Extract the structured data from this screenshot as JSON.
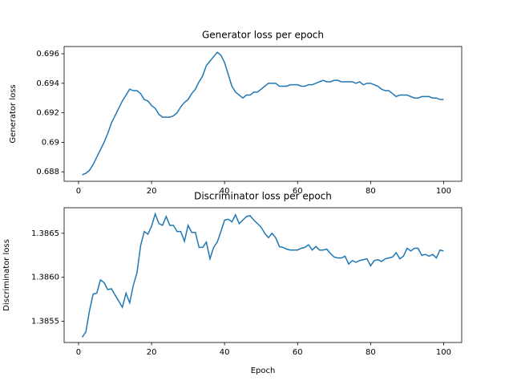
{
  "chart_data": [
    {
      "type": "line",
      "title": "Generator loss per epoch",
      "ylabel": "Generator loss",
      "color": "#1f77b4",
      "x": [
        1,
        2,
        3,
        4,
        5,
        6,
        7,
        8,
        9,
        10,
        11,
        12,
        13,
        14,
        15,
        16,
        17,
        18,
        19,
        20,
        21,
        22,
        23,
        24,
        25,
        26,
        27,
        28,
        29,
        30,
        31,
        32,
        33,
        34,
        35,
        36,
        37,
        38,
        39,
        40,
        41,
        42,
        43,
        44,
        45,
        46,
        47,
        48,
        49,
        50,
        51,
        52,
        53,
        54,
        55,
        56,
        57,
        58,
        59,
        60,
        61,
        62,
        63,
        64,
        65,
        66,
        67,
        68,
        69,
        70,
        71,
        72,
        73,
        74,
        75,
        76,
        77,
        78,
        79,
        80,
        81,
        82,
        83,
        84,
        85,
        86,
        87,
        88,
        89,
        90,
        91,
        92,
        93,
        94,
        95,
        96,
        97,
        98,
        99,
        100
      ],
      "values": [
        0.6878,
        0.6879,
        0.6881,
        0.6885,
        0.689,
        0.6895,
        0.69,
        0.6906,
        0.6913,
        0.6918,
        0.6923,
        0.6928,
        0.6932,
        0.6936,
        0.6935,
        0.6935,
        0.6933,
        0.6929,
        0.6928,
        0.6925,
        0.6923,
        0.6919,
        0.6917,
        0.6917,
        0.6917,
        0.6918,
        0.692,
        0.6924,
        0.6927,
        0.6929,
        0.6933,
        0.6936,
        0.6941,
        0.6945,
        0.6952,
        0.6955,
        0.6958,
        0.6961,
        0.6959,
        0.6954,
        0.6946,
        0.6938,
        0.6934,
        0.6932,
        0.693,
        0.6932,
        0.6932,
        0.6934,
        0.6934,
        0.6936,
        0.6938,
        0.694,
        0.694,
        0.694,
        0.6938,
        0.6938,
        0.6938,
        0.6939,
        0.6939,
        0.6939,
        0.6938,
        0.6938,
        0.6939,
        0.6939,
        0.694,
        0.6941,
        0.6942,
        0.6941,
        0.6941,
        0.6942,
        0.6942,
        0.6941,
        0.6941,
        0.6941,
        0.6941,
        0.694,
        0.6941,
        0.6939,
        0.694,
        0.694,
        0.6939,
        0.6938,
        0.6936,
        0.6935,
        0.6935,
        0.6933,
        0.6931,
        0.6932,
        0.6932,
        0.6932,
        0.6931,
        0.693,
        0.693,
        0.6931,
        0.6931,
        0.6931,
        0.693,
        0.693,
        0.6929,
        0.6929
      ],
      "xlim": [
        -3.95,
        104.95
      ],
      "xticks": [
        0,
        20,
        40,
        60,
        80,
        100
      ],
      "ylim": [
        0.68736,
        0.69649
      ],
      "yticks": [
        0.688,
        0.69,
        0.692,
        0.694,
        0.696
      ]
    },
    {
      "type": "line",
      "title": "Discriminator loss per epoch",
      "xlabel": "Epoch",
      "ylabel": "Discriminator loss",
      "color": "#1f77b4",
      "x": [
        1,
        2,
        3,
        4,
        5,
        6,
        7,
        8,
        9,
        10,
        11,
        12,
        13,
        14,
        15,
        16,
        17,
        18,
        19,
        20,
        21,
        22,
        23,
        24,
        25,
        26,
        27,
        28,
        29,
        30,
        31,
        32,
        33,
        34,
        35,
        36,
        37,
        38,
        39,
        40,
        41,
        42,
        43,
        44,
        45,
        46,
        47,
        48,
        49,
        50,
        51,
        52,
        53,
        54,
        55,
        56,
        57,
        58,
        59,
        60,
        61,
        62,
        63,
        64,
        65,
        66,
        67,
        68,
        69,
        70,
        71,
        72,
        73,
        74,
        75,
        76,
        77,
        78,
        79,
        80,
        81,
        82,
        83,
        84,
        85,
        86,
        87,
        88,
        89,
        90,
        91,
        92,
        93,
        94,
        95,
        96,
        97,
        98,
        99,
        100
      ],
      "values": [
        1.38532,
        1.38538,
        1.38562,
        1.38581,
        1.38582,
        1.38597,
        1.38594,
        1.38586,
        1.38587,
        1.3858,
        1.38573,
        1.38566,
        1.38582,
        1.38571,
        1.38591,
        1.38605,
        1.38636,
        1.38652,
        1.38649,
        1.38658,
        1.38672,
        1.38661,
        1.38659,
        1.38669,
        1.38659,
        1.38659,
        1.38652,
        1.38652,
        1.38641,
        1.38659,
        1.38651,
        1.38651,
        1.38634,
        1.38634,
        1.3864,
        1.38621,
        1.38634,
        1.3864,
        1.38652,
        1.38665,
        1.38666,
        1.38663,
        1.38671,
        1.38661,
        1.38665,
        1.38669,
        1.3867,
        1.38665,
        1.38661,
        1.38657,
        1.3865,
        1.38645,
        1.3865,
        1.38645,
        1.38635,
        1.38634,
        1.38632,
        1.38631,
        1.38631,
        1.38631,
        1.38633,
        1.38634,
        1.38637,
        1.38631,
        1.38635,
        1.38631,
        1.38631,
        1.38632,
        1.38627,
        1.38623,
        1.38622,
        1.38622,
        1.38624,
        1.38615,
        1.38619,
        1.38617,
        1.38619,
        1.3862,
        1.38621,
        1.38613,
        1.38619,
        1.3862,
        1.38618,
        1.38621,
        1.38622,
        1.38623,
        1.38628,
        1.38621,
        1.38624,
        1.38633,
        1.3863,
        1.38633,
        1.38633,
        1.38625,
        1.38626,
        1.38624,
        1.38626,
        1.38622,
        1.38631,
        1.3863
      ],
      "xlim": [
        -3.95,
        104.95
      ],
      "xticks": [
        0,
        20,
        40,
        60,
        80,
        100
      ],
      "ylim": [
        1.38526,
        1.38679
      ],
      "yticks": [
        1.3855,
        {
          "value": 1.386,
          "label": "1.3860"
        },
        1.3865
      ]
    }
  ]
}
